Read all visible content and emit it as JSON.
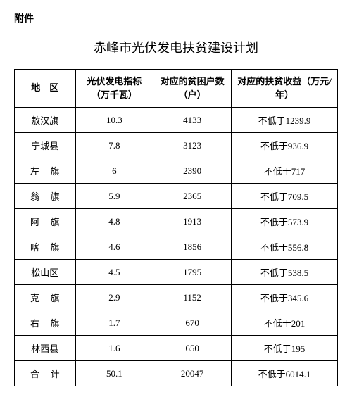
{
  "attachment_label": "附件",
  "title": "赤峰市光伏发电扶贫建设计划",
  "columns": {
    "region": "地　区",
    "capacity": "光伏发电指标\n（万千瓦）",
    "households": "对应的贫困户数\n（户）",
    "revenue": "对应的扶贫收益（万元/年）"
  },
  "rows": [
    {
      "region": "敖汉旗",
      "region_spaced": false,
      "capacity": "10.3",
      "households": "4133",
      "revenue": "不低于1239.9"
    },
    {
      "region": "宁城县",
      "region_spaced": false,
      "capacity": "7.8",
      "households": "3123",
      "revenue": "不低于936.9"
    },
    {
      "region": "左旗",
      "region_spaced": true,
      "capacity": "6",
      "households": "2390",
      "revenue": "不低于717"
    },
    {
      "region": "翁旗",
      "region_spaced": true,
      "capacity": "5.9",
      "households": "2365",
      "revenue": "不低于709.5"
    },
    {
      "region": "阿旗",
      "region_spaced": true,
      "capacity": "4.8",
      "households": "1913",
      "revenue": "不低于573.9"
    },
    {
      "region": "喀旗",
      "region_spaced": true,
      "capacity": "4.6",
      "households": "1856",
      "revenue": "不低于556.8"
    },
    {
      "region": "松山区",
      "region_spaced": false,
      "capacity": "4.5",
      "households": "1795",
      "revenue": "不低于538.5"
    },
    {
      "region": "克旗",
      "region_spaced": true,
      "capacity": "2.9",
      "households": "1152",
      "revenue": "不低于345.6"
    },
    {
      "region": "右旗",
      "region_spaced": true,
      "capacity": "1.7",
      "households": "670",
      "revenue": "不低于201"
    },
    {
      "region": "林西县",
      "region_spaced": false,
      "capacity": "1.6",
      "households": "650",
      "revenue": "不低于195"
    }
  ],
  "total": {
    "region": "合计",
    "region_spaced": true,
    "capacity": "50.1",
    "households": "20047",
    "revenue": "不低于6014.1"
  }
}
